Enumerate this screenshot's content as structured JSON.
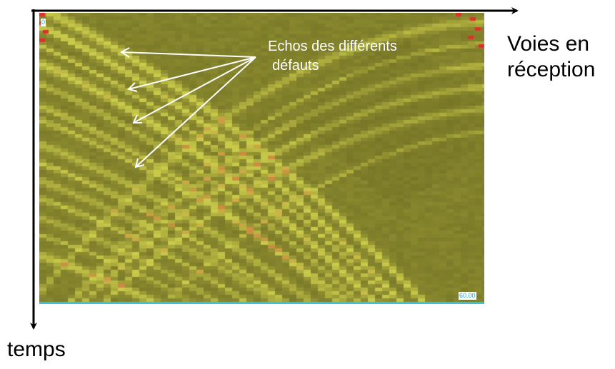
{
  "axes": {
    "x_label_line1": "Voies en",
    "x_label_line2": "réception",
    "y_label": "temps"
  },
  "scan": {
    "start_value": "0",
    "end_value": "60.00",
    "colors": {
      "background": "#6b6a22",
      "echo": "#c9c94a",
      "echo_hot": "#d0603a",
      "baseline": "#3fc1d8",
      "saturated": "#d8342b"
    }
  },
  "annotation": {
    "line1": "Echos des différents",
    "line2": "défauts"
  }
}
